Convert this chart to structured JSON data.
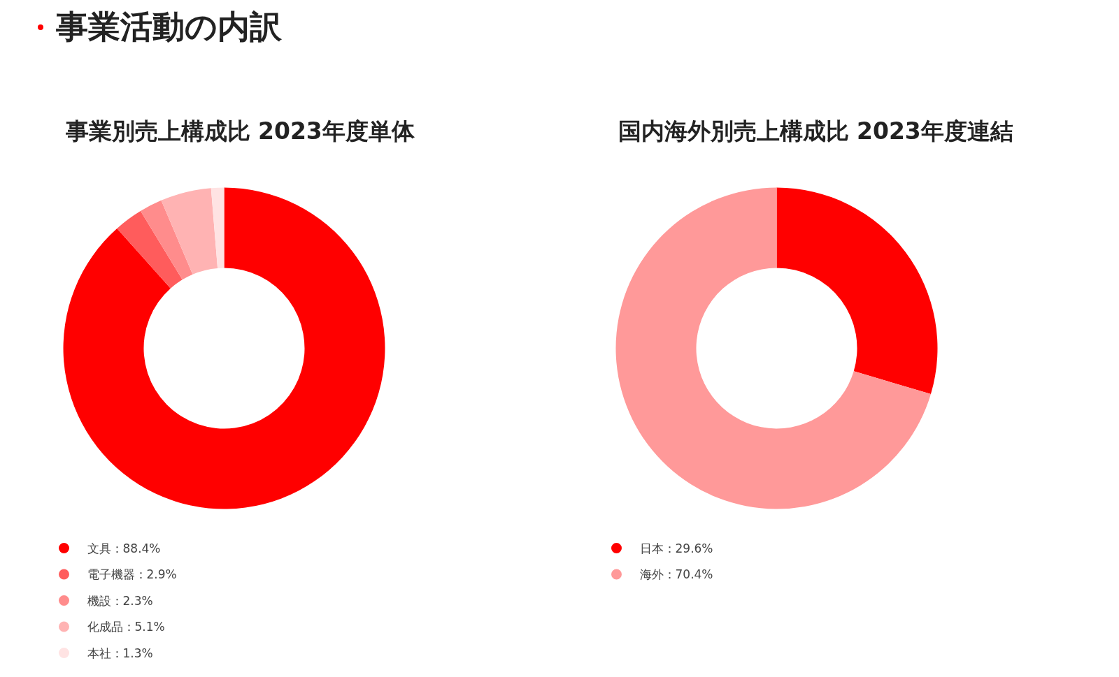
{
  "chart_data": [
    {
      "type": "donut",
      "title": "事業別売上構成比 2023年度単体",
      "annotations": [
        "事業活動の内訳"
      ],
      "categories": [
        "文具",
        "電子機器",
        "機設",
        "化成品",
        "本社"
      ],
      "values": [
        88.4,
        2.9,
        2.3,
        5.1,
        1.3
      ],
      "value_labels": [
        "88.4%",
        "2.9%",
        "2.3%",
        "5.1%",
        "1.3%"
      ],
      "colors": [
        "#ff0000",
        "#ff5c5c",
        "#ff8c8c",
        "#ffb3b3",
        "#ffe3e3"
      ],
      "legend": "bottom left"
    },
    {
      "type": "donut",
      "title": "国内海外別売上構成比 2023年度連結",
      "categories": [
        "日本",
        "海外"
      ],
      "values": [
        29.6,
        70.4
      ],
      "value_labels": [
        "29.6%",
        "70.4%"
      ],
      "colors": [
        "#ff0000",
        "#ff9999"
      ],
      "legend": "bottom left"
    }
  ]
}
